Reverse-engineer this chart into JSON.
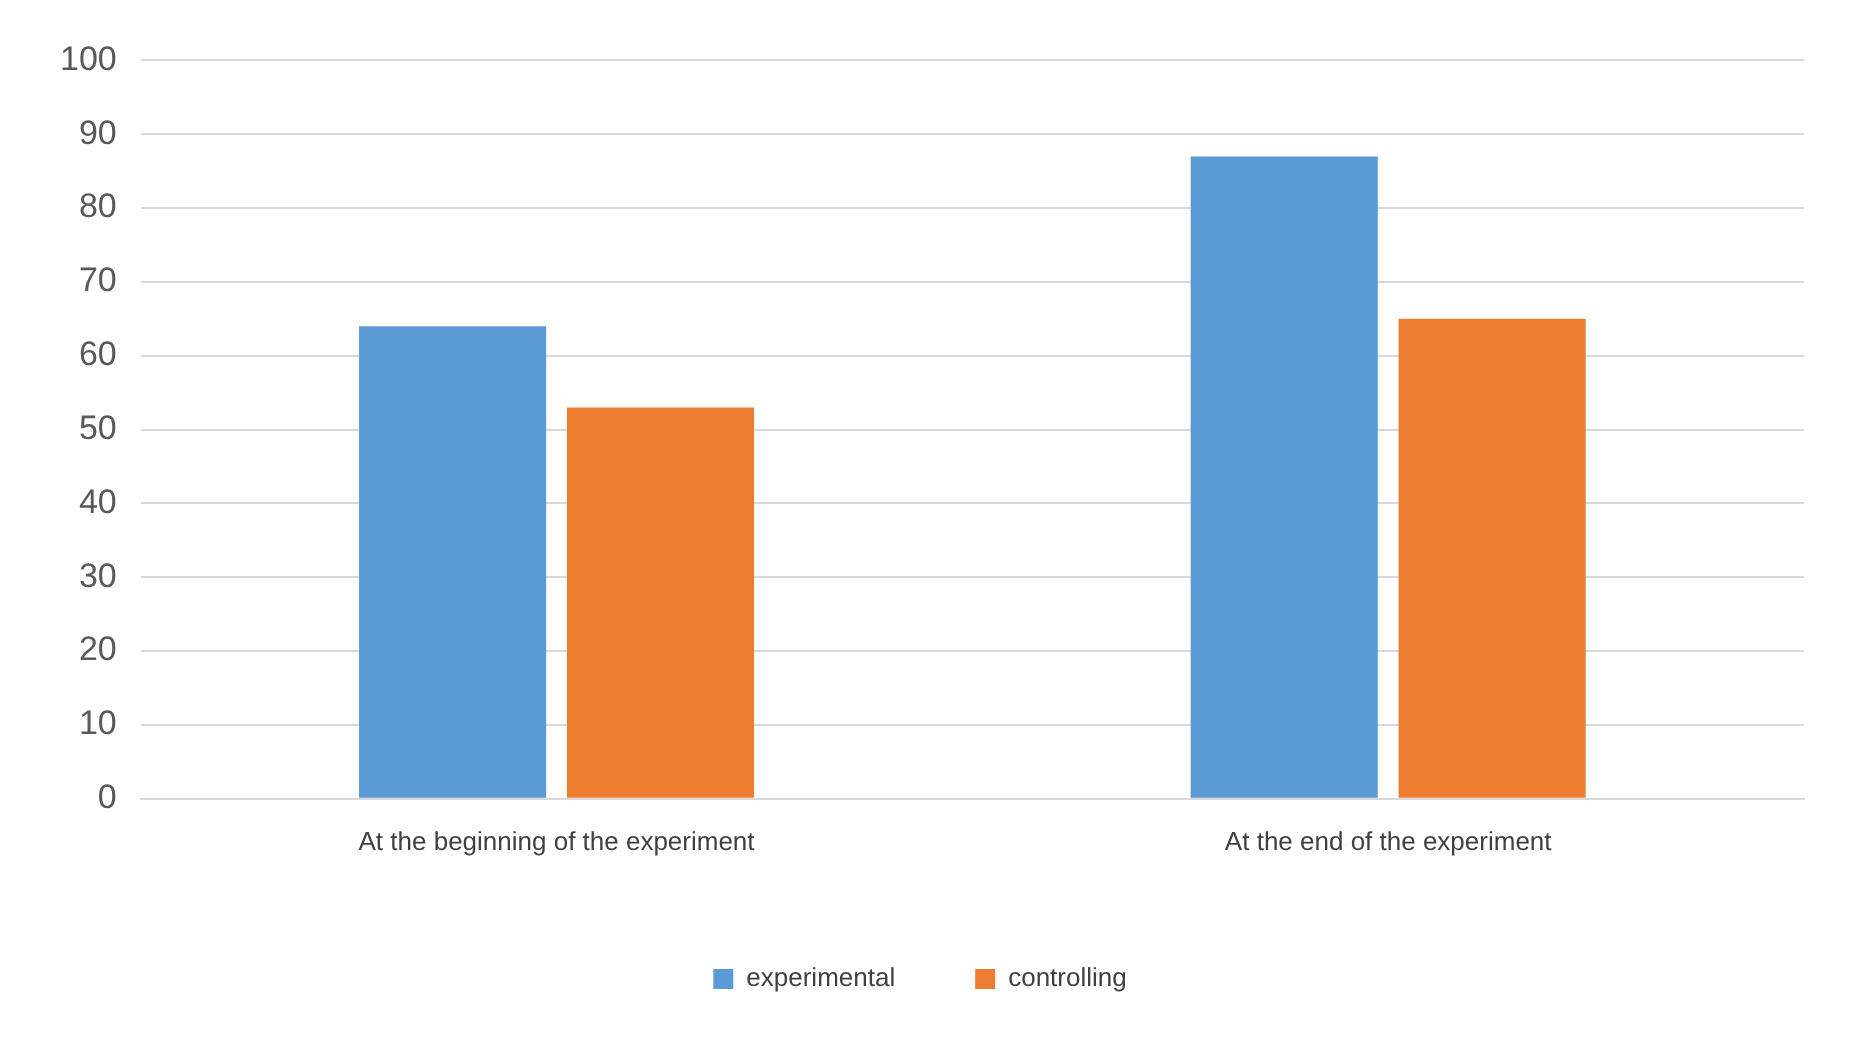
{
  "chart_data": {
    "type": "bar",
    "categories": [
      "At the beginning of the experiment",
      "At the end of the experiment"
    ],
    "series": [
      {
        "name": "experimental",
        "color": "#5b9bd5",
        "values": [
          64,
          87
        ]
      },
      {
        "name": "controlling",
        "color": "#ed7d31",
        "values": [
          53,
          65
        ]
      }
    ],
    "ylim": [
      0,
      100
    ],
    "yticks": [
      0,
      10,
      20,
      30,
      40,
      50,
      60,
      70,
      80,
      90,
      100
    ],
    "grid": "y",
    "legend": "bottom"
  }
}
